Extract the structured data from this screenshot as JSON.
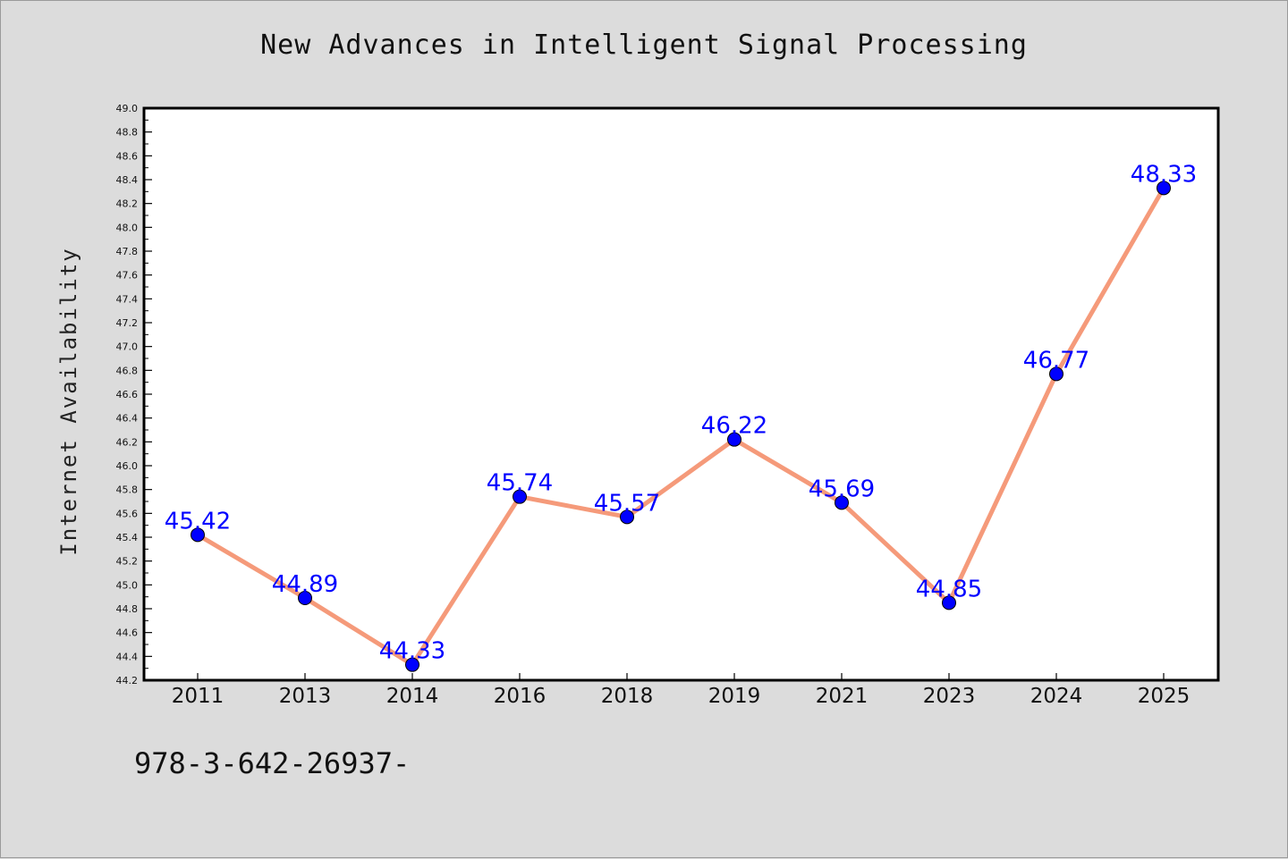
{
  "chart_data": {
    "type": "line",
    "title": "New Advances in Intelligent Signal Processing",
    "xlabel": "",
    "ylabel": "Internet Availability",
    "categories": [
      "2011",
      "2013",
      "2014",
      "2016",
      "2018",
      "2019",
      "2021",
      "2023",
      "2024",
      "2025"
    ],
    "series": [
      {
        "values": [
          45.42,
          44.89,
          44.33,
          45.74,
          45.57,
          46.22,
          45.69,
          44.85,
          46.77,
          48.33
        ],
        "line_color": "#f59a7a",
        "marker_color": "#0000ff"
      }
    ],
    "data_labels": [
      "45.42",
      "44.89",
      "44.33",
      "45.74",
      "45.57",
      "46.22",
      "45.69",
      "44.85",
      "46.77",
      "48.33"
    ],
    "ylim": [
      44.2,
      49.0
    ],
    "yticks": [
      "44.2",
      "44.4",
      "44.6",
      "44.8",
      "45.0",
      "45.2",
      "45.4",
      "45.6",
      "45.8",
      "46.0",
      "46.2",
      "46.4",
      "46.6",
      "46.8",
      "47.0",
      "47.2",
      "47.4",
      "47.6",
      "47.8",
      "48.0",
      "48.2",
      "48.4",
      "48.6",
      "48.8",
      "49.0"
    ],
    "grid": false,
    "legend": "none",
    "label_color": "#0000ff"
  },
  "footer_text": "978-3-642-26937-"
}
